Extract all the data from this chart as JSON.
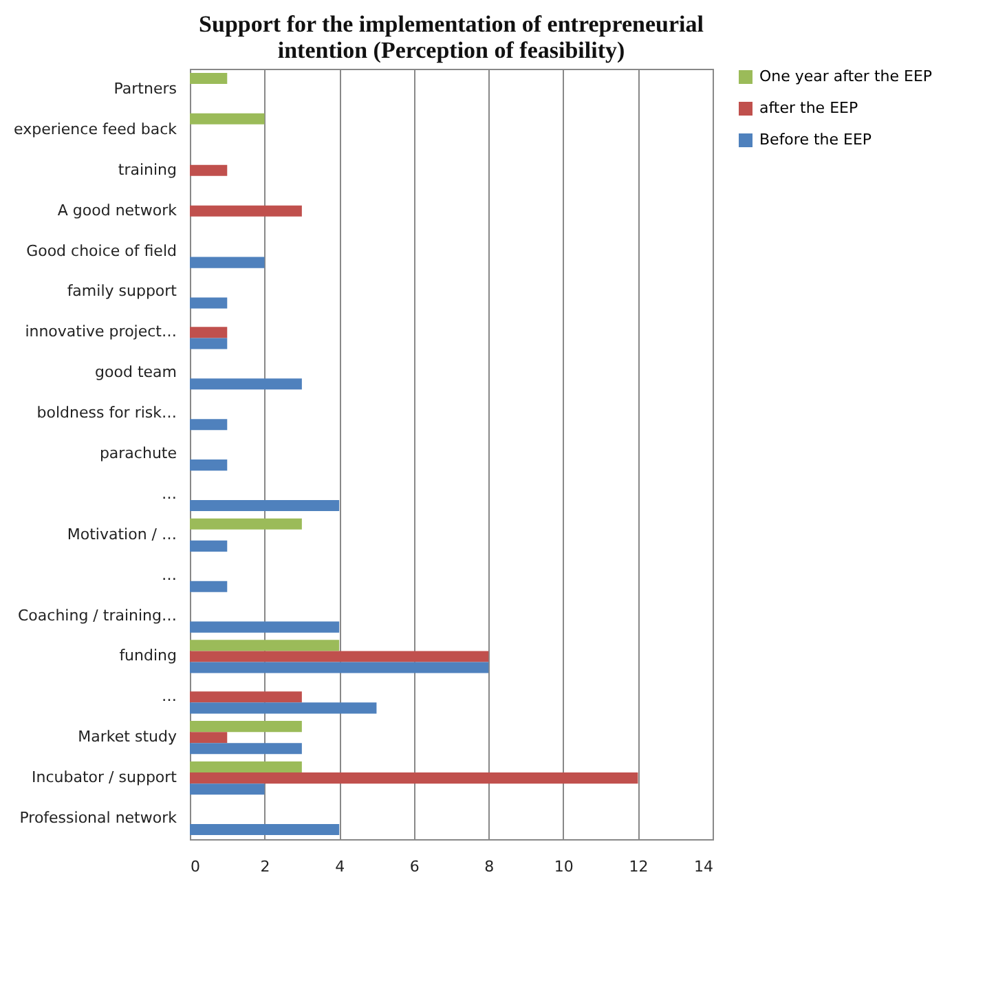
{
  "chart_data": {
    "type": "bar",
    "orientation": "horizontal",
    "title": "Support for the implementation of entrepreneurial intention (Perception of feasibility)",
    "categories": [
      "Partners",
      "experience feed back",
      "training",
      "A good network",
      "Good choice of field",
      "family support",
      "innovative project…",
      "good team",
      "boldness for risk…",
      "parachute",
      "…",
      "Motivation / …",
      "…",
      "Coaching / training…",
      "funding",
      "…",
      "Market study",
      "Incubator / support",
      "Professional network"
    ],
    "series": [
      {
        "name": "One year after the EEP",
        "color": "#9bbb59",
        "values": [
          1,
          2,
          null,
          null,
          null,
          null,
          null,
          null,
          null,
          null,
          null,
          3,
          null,
          null,
          4,
          null,
          3,
          3,
          null
        ]
      },
      {
        "name": "after the EEP",
        "color": "#c0504d",
        "values": [
          null,
          null,
          1,
          3,
          null,
          null,
          1,
          null,
          null,
          null,
          null,
          null,
          null,
          null,
          8,
          3,
          1,
          12,
          null
        ]
      },
      {
        "name": "Before the EEP",
        "color": "#4f81bd",
        "values": [
          null,
          null,
          null,
          null,
          2,
          1,
          1,
          3,
          1,
          1,
          4,
          1,
          1,
          4,
          8,
          5,
          3,
          2,
          4
        ]
      }
    ],
    "xlim": [
      0,
      14
    ],
    "xticks": [
      0,
      2,
      4,
      6,
      8,
      10,
      12,
      14
    ],
    "grid": "x",
    "legend": "right"
  }
}
